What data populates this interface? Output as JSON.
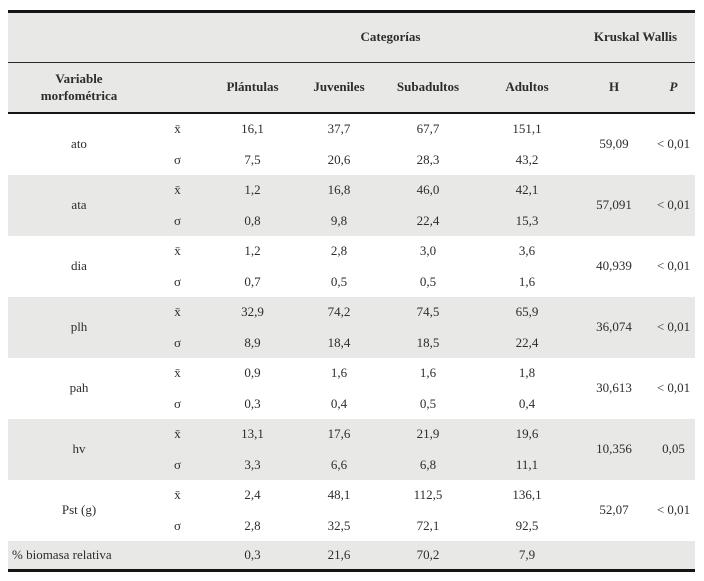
{
  "header": {
    "categories": "Categorías",
    "kruskal": "Kruskal Wallis",
    "variable": "Variable morfométrica",
    "cols": [
      "Plántulas",
      "Juveniles",
      "Subadultos",
      "Adultos"
    ],
    "h": "H",
    "p": "P"
  },
  "symbols": {
    "mean": "x̄",
    "sd": "σ"
  },
  "rows": [
    {
      "variable": "ato",
      "mean": [
        "16,1",
        "37,7",
        "67,7",
        "151,1"
      ],
      "sd": [
        "7,5",
        "20,6",
        "28,3",
        "43,2"
      ],
      "h": "59,09",
      "p": "< 0,01"
    },
    {
      "variable": "ata",
      "mean": [
        "1,2",
        "16,8",
        "46,0",
        "42,1"
      ],
      "sd": [
        "0,8",
        "9,8",
        "22,4",
        "15,3"
      ],
      "h": "57,091",
      "p": "< 0,01"
    },
    {
      "variable": "dia",
      "mean": [
        "1,2",
        "2,8",
        "3,0",
        "3,6"
      ],
      "sd": [
        "0,7",
        "0,5",
        "0,5",
        "1,6"
      ],
      "h": "40,939",
      "p": "< 0,01"
    },
    {
      "variable": "plh",
      "mean": [
        "32,9",
        "74,2",
        "74,5",
        "65,9"
      ],
      "sd": [
        "8,9",
        "18,4",
        "18,5",
        "22,4"
      ],
      "h": "36,074",
      "p": "< 0,01"
    },
    {
      "variable": "pah",
      "mean": [
        "0,9",
        "1,6",
        "1,6",
        "1,8"
      ],
      "sd": [
        "0,3",
        "0,4",
        "0,5",
        "0,4"
      ],
      "h": "30,613",
      "p": "< 0,01"
    },
    {
      "variable": "hv",
      "mean": [
        "13,1",
        "17,6",
        "21,9",
        "19,6"
      ],
      "sd": [
        "3,3",
        "6,6",
        "6,8",
        "11,1"
      ],
      "h": "10,356",
      "p": "0,05"
    },
    {
      "variable": "Pst (g)",
      "mean": [
        "2,4",
        "48,1",
        "112,5",
        "136,1"
      ],
      "sd": [
        "2,8",
        "32,5",
        "72,1",
        "92,5"
      ],
      "h": "52,07",
      "p": "< 0,01"
    }
  ],
  "footer": {
    "label": "% biomasa relativa",
    "values": [
      "0,3",
      "21,6",
      "70,2",
      "7,9"
    ]
  },
  "colors": {
    "row_alt_bg": "#e8e8e7",
    "border": "#151515",
    "text": "#2d2d2d"
  }
}
